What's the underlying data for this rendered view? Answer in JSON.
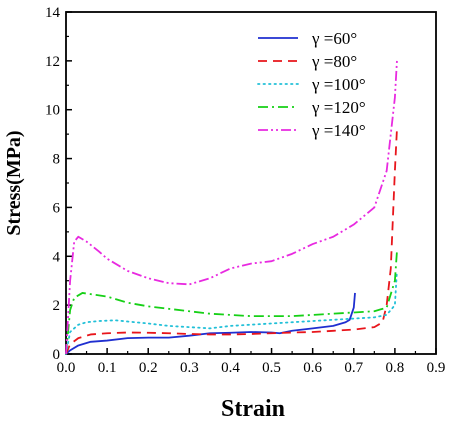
{
  "chart_data": {
    "type": "line",
    "title": "",
    "xlabel": "Strain",
    "ylabel": "Stress(MPa)",
    "xlim": [
      0.0,
      0.9
    ],
    "ylim": [
      0,
      14
    ],
    "xticks": [
      "0.0",
      "0.1",
      "0.2",
      "0.3",
      "0.4",
      "0.5",
      "0.6",
      "0.7",
      "0.8",
      "0.9"
    ],
    "yticks": [
      "0",
      "2",
      "4",
      "6",
      "8",
      "10",
      "12",
      "14"
    ],
    "grid": false,
    "legend_position": "top-right",
    "series": [
      {
        "name": "γ =60°",
        "color": "#1f2fd0",
        "dash": "solid",
        "x": [
          0.0,
          0.01,
          0.03,
          0.06,
          0.1,
          0.15,
          0.2,
          0.25,
          0.3,
          0.35,
          0.4,
          0.45,
          0.5,
          0.52,
          0.55,
          0.6,
          0.65,
          0.68,
          0.69,
          0.7,
          0.703
        ],
        "y": [
          0.0,
          0.15,
          0.35,
          0.5,
          0.55,
          0.65,
          0.67,
          0.67,
          0.75,
          0.85,
          0.87,
          0.9,
          0.88,
          0.85,
          0.95,
          1.05,
          1.15,
          1.3,
          1.4,
          1.9,
          2.5
        ]
      },
      {
        "name": "γ =80°",
        "color": "#e8151b",
        "dash": "dashed",
        "x": [
          0.0,
          0.01,
          0.03,
          0.06,
          0.1,
          0.15,
          0.2,
          0.25,
          0.3,
          0.35,
          0.4,
          0.45,
          0.5,
          0.55,
          0.6,
          0.65,
          0.7,
          0.75,
          0.77,
          0.78,
          0.79,
          0.795,
          0.8,
          0.805
        ],
        "y": [
          0.0,
          0.4,
          0.65,
          0.8,
          0.85,
          0.88,
          0.87,
          0.85,
          0.82,
          0.8,
          0.8,
          0.82,
          0.85,
          0.88,
          0.9,
          0.95,
          1.0,
          1.1,
          1.3,
          2.0,
          3.5,
          5.5,
          7.5,
          9.2
        ]
      },
      {
        "name": "γ =100°",
        "color": "#22c0d8",
        "dash": "dotted",
        "x": [
          0.0,
          0.01,
          0.03,
          0.05,
          0.08,
          0.12,
          0.15,
          0.2,
          0.25,
          0.3,
          0.35,
          0.4,
          0.45,
          0.5,
          0.55,
          0.6,
          0.65,
          0.7,
          0.75,
          0.78,
          0.8,
          0.805
        ],
        "y": [
          0.0,
          0.9,
          1.2,
          1.3,
          1.35,
          1.38,
          1.33,
          1.25,
          1.15,
          1.1,
          1.05,
          1.15,
          1.2,
          1.25,
          1.3,
          1.35,
          1.4,
          1.45,
          1.5,
          1.6,
          2.0,
          3.4
        ]
      },
      {
        "name": "γ =120°",
        "color": "#16d016",
        "dash": "dashdot",
        "x": [
          0.0,
          0.01,
          0.02,
          0.04,
          0.06,
          0.1,
          0.15,
          0.2,
          0.25,
          0.3,
          0.35,
          0.4,
          0.45,
          0.5,
          0.55,
          0.6,
          0.65,
          0.7,
          0.75,
          0.78,
          0.8,
          0.805
        ],
        "y": [
          0.0,
          1.8,
          2.3,
          2.5,
          2.45,
          2.35,
          2.1,
          1.95,
          1.85,
          1.75,
          1.65,
          1.6,
          1.55,
          1.55,
          1.55,
          1.6,
          1.65,
          1.7,
          1.75,
          1.9,
          3.0,
          4.2
        ]
      },
      {
        "name": "γ =140°",
        "color": "#e82ae0",
        "dash": "dashdotdot",
        "x": [
          0.0,
          0.01,
          0.02,
          0.03,
          0.05,
          0.08,
          0.1,
          0.15,
          0.2,
          0.25,
          0.3,
          0.35,
          0.4,
          0.45,
          0.5,
          0.55,
          0.6,
          0.65,
          0.7,
          0.75,
          0.78,
          0.79,
          0.8,
          0.805
        ],
        "y": [
          0.0,
          3.0,
          4.6,
          4.8,
          4.6,
          4.2,
          3.9,
          3.4,
          3.1,
          2.9,
          2.85,
          3.1,
          3.5,
          3.7,
          3.8,
          4.1,
          4.5,
          4.8,
          5.3,
          6.0,
          7.5,
          9.0,
          10.5,
          12.0
        ]
      }
    ]
  }
}
